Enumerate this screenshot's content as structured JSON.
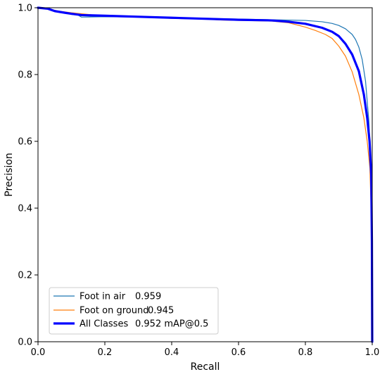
{
  "chart_data": {
    "type": "line",
    "title": "",
    "xlabel": "Recall",
    "ylabel": "Precision",
    "xlim": [
      0,
      1
    ],
    "ylim": [
      0,
      1
    ],
    "x_ticks": [
      "0.0",
      "0.2",
      "0.4",
      "0.6",
      "0.8",
      "1.0"
    ],
    "y_ticks": [
      "0.0",
      "0.2",
      "0.4",
      "0.6",
      "0.8",
      "1.0"
    ],
    "grid": false,
    "legend_position": "lower-left",
    "series": [
      {
        "name": "Foot in air",
        "score": "0.959",
        "color": "#1f77b4",
        "points": [
          [
            0.0,
            1.0
          ],
          [
            0.03,
            0.998
          ],
          [
            0.05,
            0.99
          ],
          [
            0.08,
            0.985
          ],
          [
            0.1,
            0.98
          ],
          [
            0.12,
            0.978
          ],
          [
            0.13,
            0.972
          ],
          [
            0.2,
            0.973
          ],
          [
            0.3,
            0.972
          ],
          [
            0.4,
            0.97
          ],
          [
            0.5,
            0.968
          ],
          [
            0.6,
            0.966
          ],
          [
            0.7,
            0.964
          ],
          [
            0.8,
            0.962
          ],
          [
            0.85,
            0.958
          ],
          [
            0.88,
            0.953
          ],
          [
            0.9,
            0.947
          ],
          [
            0.92,
            0.937
          ],
          [
            0.94,
            0.92
          ],
          [
            0.95,
            0.905
          ],
          [
            0.96,
            0.882
          ],
          [
            0.97,
            0.845
          ],
          [
            0.98,
            0.78
          ],
          [
            0.99,
            0.66
          ],
          [
            0.995,
            0.55
          ],
          [
            0.998,
            0.4
          ],
          [
            0.999,
            0.2
          ],
          [
            1.0,
            0.0
          ]
        ]
      },
      {
        "name": "Foot on ground",
        "score": "0.945",
        "color": "#ff7f0e",
        "points": [
          [
            0.0,
            1.0
          ],
          [
            0.03,
            0.997
          ],
          [
            0.06,
            0.99
          ],
          [
            0.1,
            0.985
          ],
          [
            0.12,
            0.983
          ],
          [
            0.15,
            0.98
          ],
          [
            0.17,
            0.978
          ],
          [
            0.2,
            0.977
          ],
          [
            0.3,
            0.973
          ],
          [
            0.4,
            0.968
          ],
          [
            0.5,
            0.966
          ],
          [
            0.55,
            0.963
          ],
          [
            0.6,
            0.962
          ],
          [
            0.7,
            0.96
          ],
          [
            0.75,
            0.955
          ],
          [
            0.8,
            0.942
          ],
          [
            0.83,
            0.932
          ],
          [
            0.86,
            0.92
          ],
          [
            0.88,
            0.908
          ],
          [
            0.9,
            0.885
          ],
          [
            0.92,
            0.855
          ],
          [
            0.94,
            0.808
          ],
          [
            0.96,
            0.74
          ],
          [
            0.975,
            0.67
          ],
          [
            0.985,
            0.6
          ],
          [
            0.993,
            0.52
          ],
          [
            0.998,
            0.35
          ],
          [
            1.0,
            0.0
          ]
        ]
      },
      {
        "name": "All Classes",
        "score": "0.952 mAP@0.5",
        "color": "#0000ff",
        "points": [
          [
            0.0,
            1.0
          ],
          [
            0.03,
            0.997
          ],
          [
            0.05,
            0.99
          ],
          [
            0.08,
            0.985
          ],
          [
            0.1,
            0.982
          ],
          [
            0.13,
            0.978
          ],
          [
            0.2,
            0.976
          ],
          [
            0.3,
            0.973
          ],
          [
            0.4,
            0.97
          ],
          [
            0.5,
            0.967
          ],
          [
            0.6,
            0.964
          ],
          [
            0.7,
            0.962
          ],
          [
            0.75,
            0.958
          ],
          [
            0.8,
            0.952
          ],
          [
            0.85,
            0.94
          ],
          [
            0.88,
            0.928
          ],
          [
            0.9,
            0.915
          ],
          [
            0.92,
            0.892
          ],
          [
            0.94,
            0.86
          ],
          [
            0.96,
            0.81
          ],
          [
            0.975,
            0.74
          ],
          [
            0.985,
            0.67
          ],
          [
            0.992,
            0.6
          ],
          [
            0.997,
            0.5
          ],
          [
            0.999,
            0.3
          ],
          [
            1.0,
            0.0
          ]
        ]
      }
    ]
  }
}
